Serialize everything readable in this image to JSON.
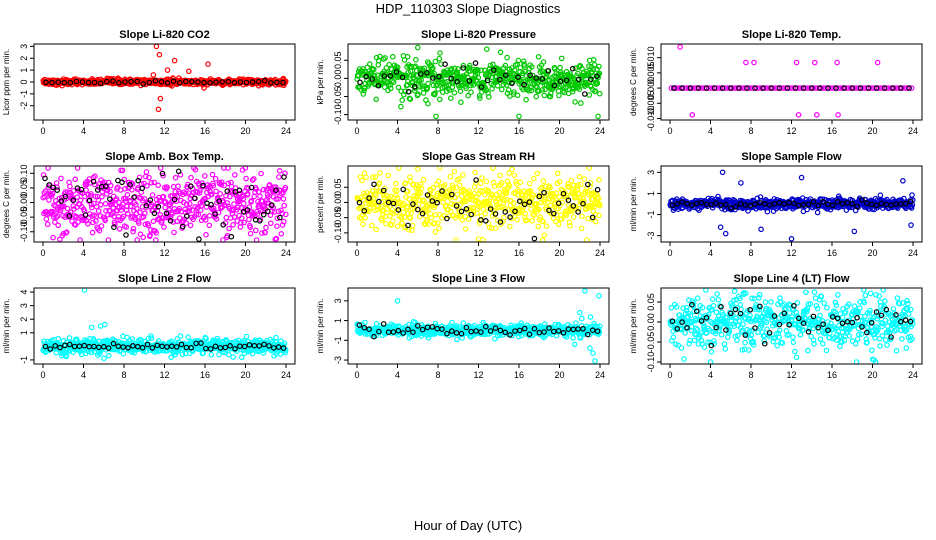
{
  "figure": {
    "title": "HDP_110303  Slope Diagnostics",
    "xlabel": "Hour of Day (UTC)"
  },
  "chart_data": [
    {
      "type": "scatter",
      "title": "Slope Li-820 CO2",
      "ylabel": "Licor ppm per min.",
      "xlim": [
        0,
        24
      ],
      "ylim": [
        -3.2,
        3.2
      ],
      "xticks": [
        "0",
        "4",
        "8",
        "12",
        "16",
        "20",
        "24"
      ],
      "yticks": [
        {
          "value": -2,
          "label": "-2"
        },
        {
          "value": -1,
          "label": "-1"
        },
        {
          "value": 0,
          "label": "0"
        },
        {
          "value": 1,
          "label": "1"
        },
        {
          "value": 2,
          "label": "2"
        },
        {
          "value": 3,
          "label": "3"
        }
      ],
      "color": "#ff0000",
      "spread": 0.12,
      "points_per_hour": 25,
      "outliers": [
        {
          "x": 11.2,
          "y": 3.0
        },
        {
          "x": 11.5,
          "y": 2.3
        },
        {
          "x": 11.4,
          "y": -2.3
        },
        {
          "x": 11.6,
          "y": -1.4
        },
        {
          "x": 12.3,
          "y": 1.0
        },
        {
          "x": 13.0,
          "y": 1.8
        },
        {
          "x": 14.4,
          "y": 0.9
        },
        {
          "x": 16.3,
          "y": 1.5
        },
        {
          "x": 15.9,
          "y": -0.5
        },
        {
          "x": 10.9,
          "y": 0.6
        }
      ],
      "series": [
        {
          "name": "black",
          "color": "#000000",
          "spread": 0.07,
          "count": 40
        }
      ]
    },
    {
      "type": "scatter",
      "title": "Slope Li-820 Pressure",
      "ylabel": "kPa per min.",
      "xlim": [
        0,
        24
      ],
      "ylim": [
        -0.115,
        0.095
      ],
      "xticks": [
        "0",
        "4",
        "8",
        "12",
        "16",
        "20",
        "24"
      ],
      "yticks": [
        {
          "value": -0.1,
          "label": "-0.10"
        },
        {
          "value": -0.05,
          "label": "-0.05"
        },
        {
          "value": 0.0,
          "label": "0.00"
        },
        {
          "value": 0.05,
          "label": "0.05"
        }
      ],
      "color": "#00c800",
      "spread": 0.025,
      "points_per_hour": 25,
      "outliers": [
        {
          "x": 6.0,
          "y": 0.085
        },
        {
          "x": 7.8,
          "y": -0.105
        },
        {
          "x": 16.0,
          "y": -0.105
        },
        {
          "x": 23.8,
          "y": -0.105
        },
        {
          "x": 6.8,
          "y": -0.06
        },
        {
          "x": 7.0,
          "y": -0.07
        },
        {
          "x": 5.0,
          "y": 0.06
        },
        {
          "x": 8.2,
          "y": 0.07
        }
      ],
      "series": [
        {
          "name": "black",
          "color": "#000000",
          "spread": 0.018,
          "count": 40
        }
      ]
    },
    {
      "type": "scatter",
      "title": "Slope Li-820 Temp.",
      "ylabel": "degrees C per min.",
      "xlim": [
        0,
        24
      ],
      "ylim": [
        -0.0105,
        0.0145
      ],
      "xticks": [
        "0",
        "4",
        "8",
        "12",
        "16",
        "20",
        "24"
      ],
      "yticks": [
        {
          "value": -0.01,
          "label": "-0.010"
        },
        {
          "value": -0.005,
          "label": "-0.005"
        },
        {
          "value": 0.0,
          "label": "0.000"
        },
        {
          "value": 0.005,
          "label": "0.005"
        },
        {
          "value": 0.01,
          "label": "0.010"
        }
      ],
      "color": "#ff00ff",
      "spread": 0,
      "points_per_hour": 4,
      "outliers": [
        {
          "x": 1.0,
          "y": 0.0135
        },
        {
          "x": 7.5,
          "y": 0.0084
        },
        {
          "x": 8.3,
          "y": 0.0084
        },
        {
          "x": 12.5,
          "y": 0.0084
        },
        {
          "x": 14.3,
          "y": 0.0084
        },
        {
          "x": 16.5,
          "y": 0.0084
        },
        {
          "x": 20.5,
          "y": 0.0084
        },
        {
          "x": 0.5,
          "y": 0.0
        },
        {
          "x": 2.2,
          "y": -0.0088
        },
        {
          "x": 12.7,
          "y": -0.0088
        },
        {
          "x": 14.5,
          "y": -0.0088
        },
        {
          "x": 16.6,
          "y": -0.0088
        }
      ],
      "series": [
        {
          "name": "black",
          "color": "#000000",
          "spread": 0,
          "count": 30
        }
      ]
    },
    {
      "type": "scatter",
      "title": "Slope Amb. Box Temp.",
      "ylabel": "degrees C per min.",
      "xlim": [
        0,
        24
      ],
      "ylim": [
        -0.135,
        0.125
      ],
      "xticks": [
        "0",
        "4",
        "8",
        "12",
        "16",
        "20",
        "24"
      ],
      "yticks": [
        {
          "value": -0.1,
          "label": "-0.10"
        },
        {
          "value": -0.05,
          "label": "-0.05"
        },
        {
          "value": 0.0,
          "label": "0.00"
        },
        {
          "value": 0.05,
          "label": "0.05"
        },
        {
          "value": 0.1,
          "label": "0.10"
        }
      ],
      "color": "#ff00ff",
      "spread": 0.055,
      "points_per_hour": 25,
      "outliers": [
        {
          "x": 0.5,
          "y": 0.12
        },
        {
          "x": 1.0,
          "y": -0.12
        }
      ],
      "series": [
        {
          "name": "black",
          "color": "#000000",
          "spread": 0.05,
          "count": 60
        }
      ]
    },
    {
      "type": "scatter",
      "title": "Slope Gas Stream RH",
      "ylabel": "percent per min.",
      "xlim": [
        0,
        24
      ],
      "ylim": [
        -0.13,
        0.12
      ],
      "xticks": [
        "0",
        "4",
        "8",
        "12",
        "16",
        "20",
        "24"
      ],
      "yticks": [
        {
          "value": -0.1,
          "label": "-0.10"
        },
        {
          "value": -0.05,
          "label": "-0.05"
        },
        {
          "value": 0.0,
          "label": "0.00"
        },
        {
          "value": 0.05,
          "label": "0.05"
        }
      ],
      "color": "#ffff00",
      "spread": 0.045,
      "points_per_hour": 25,
      "outliers": [
        {
          "x": 6.0,
          "y": 0.11
        },
        {
          "x": 12.0,
          "y": -0.12
        },
        {
          "x": 23.9,
          "y": 0.075
        }
      ],
      "series": [
        {
          "name": "black",
          "color": "#000000",
          "spread": 0.035,
          "count": 50
        }
      ]
    },
    {
      "type": "scatter",
      "title": "Slope Sample Flow",
      "ylabel": "ml/min per min.",
      "xlim": [
        0,
        24
      ],
      "ylim": [
        -3.6,
        3.6
      ],
      "xticks": [
        "0",
        "4",
        "8",
        "12",
        "16",
        "20",
        "24"
      ],
      "yticks": [
        {
          "value": -3,
          "label": "-3"
        },
        {
          "value": -1,
          "label": "-1"
        },
        {
          "value": 1,
          "label": "1"
        },
        {
          "value": 3,
          "label": "3"
        }
      ],
      "color": "#0000cc",
      "spread": 0.25,
      "points_per_hour": 25,
      "outliers": [
        {
          "x": 5.2,
          "y": 3.0
        },
        {
          "x": 5.5,
          "y": -2.8
        },
        {
          "x": 5.0,
          "y": -2.2
        },
        {
          "x": 12.0,
          "y": -3.3
        },
        {
          "x": 13.0,
          "y": 2.5
        },
        {
          "x": 9.0,
          "y": -2.4
        },
        {
          "x": 18.2,
          "y": -2.6
        },
        {
          "x": 23.0,
          "y": 2.2
        },
        {
          "x": 23.8,
          "y": -2.0
        },
        {
          "x": 7.0,
          "y": 2.0
        }
      ],
      "series": [
        {
          "name": "black",
          "color": "#000000",
          "spread": 0.15,
          "count": 50
        }
      ]
    },
    {
      "type": "scatter",
      "title": "Slope Line 2 Flow",
      "ylabel": "ml/min per min.",
      "xlim": [
        0,
        24
      ],
      "ylim": [
        -1.3,
        4.3
      ],
      "xticks": [
        "0",
        "4",
        "8",
        "12",
        "16",
        "20",
        "24"
      ],
      "yticks": [
        {
          "value": -1,
          "label": "-1"
        },
        {
          "value": 1,
          "label": "1"
        },
        {
          "value": 2,
          "label": "2"
        },
        {
          "value": 3,
          "label": "3"
        },
        {
          "value": 4,
          "label": "4"
        }
      ],
      "color": "#00ffff",
      "spread": 0.28,
      "points_per_hour": 25,
      "outliers": [
        {
          "x": 4.1,
          "y": 4.2
        },
        {
          "x": 5.7,
          "y": 1.5
        },
        {
          "x": 6.1,
          "y": 1.6
        },
        {
          "x": 4.8,
          "y": 1.4
        }
      ],
      "series": [
        {
          "name": "black",
          "color": "#000000",
          "spread": 0.12,
          "count": 50
        }
      ]
    },
    {
      "type": "scatter",
      "title": "Slope Line 3 Flow",
      "ylabel": "ml/min per min.",
      "xlim": [
        0,
        24
      ],
      "ylim": [
        -3.4,
        4.3
      ],
      "xticks": [
        "0",
        "4",
        "8",
        "12",
        "16",
        "20",
        "24"
      ],
      "yticks": [
        {
          "value": -3,
          "label": "-3"
        },
        {
          "value": -1,
          "label": "-1"
        },
        {
          "value": 1,
          "label": "1"
        },
        {
          "value": 3,
          "label": "3"
        }
      ],
      "color": "#00ffff",
      "spread": 0.3,
      "points_per_hour": 25,
      "outliers": [
        {
          "x": 4.0,
          "y": 3.0
        },
        {
          "x": 22.5,
          "y": 4.0
        },
        {
          "x": 23.5,
          "y": -3.1
        },
        {
          "x": 23.9,
          "y": 3.5
        },
        {
          "x": 23.3,
          "y": -2.3
        },
        {
          "x": 22.0,
          "y": 1.8
        },
        {
          "x": 21.5,
          "y": -1.4
        },
        {
          "x": 23.0,
          "y": -1.8
        },
        {
          "x": 22.2,
          "y": 1.2
        }
      ],
      "series": [
        {
          "name": "black",
          "color": "#000000",
          "spread": 0.25,
          "count": 50
        }
      ]
    },
    {
      "type": "scatter",
      "title": "Slope Line 4 (LT) Flow",
      "ylabel": "ml/min per min.",
      "xlim": [
        0,
        24
      ],
      "ylim": [
        -0.105,
        0.085
      ],
      "xticks": [
        "0",
        "4",
        "8",
        "12",
        "16",
        "20",
        "24"
      ],
      "yticks": [
        {
          "value": -0.1,
          "label": "-0.10"
        },
        {
          "value": -0.05,
          "label": "-0.05"
        },
        {
          "value": 0.0,
          "label": "0.00"
        },
        {
          "value": 0.05,
          "label": "0.05"
        }
      ],
      "color": "#00ffff",
      "spread": 0.032,
      "points_per_hour": 25,
      "outliers": [
        {
          "x": 4.0,
          "y": -0.1
        },
        {
          "x": 20.3,
          "y": -0.1
        }
      ],
      "series": [
        {
          "name": "black",
          "color": "#000000",
          "spread": 0.025,
          "count": 50
        }
      ]
    }
  ]
}
